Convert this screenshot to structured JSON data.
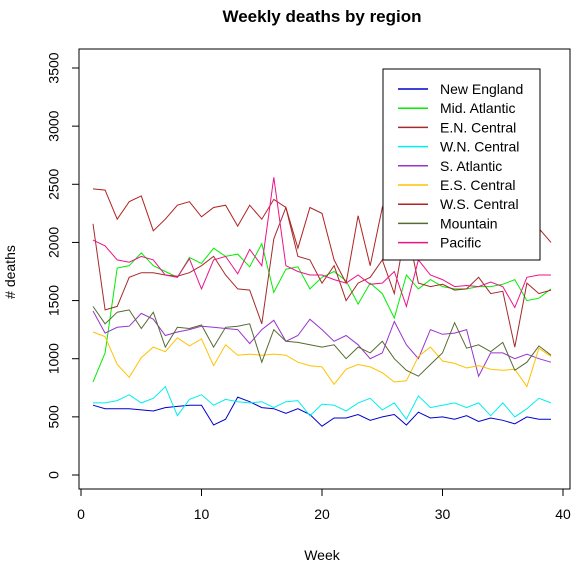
{
  "chart_data": {
    "type": "line",
    "title": "Weekly deaths by region",
    "xlabel": "Week",
    "ylabel": "# deaths",
    "xlim": [
      0,
      40
    ],
    "ylim": [
      0,
      3500
    ],
    "xticks": [
      0,
      10,
      20,
      30,
      40
    ],
    "yticks": [
      0,
      500,
      1000,
      1500,
      2000,
      2500,
      3000,
      3500
    ],
    "grid": false,
    "legend_position": "top-right",
    "x": [
      1,
      2,
      3,
      4,
      5,
      6,
      7,
      8,
      9,
      10,
      11,
      12,
      13,
      14,
      15,
      16,
      17,
      18,
      19,
      20,
      21,
      22,
      23,
      24,
      25,
      26,
      27,
      28,
      29,
      30,
      31,
      32,
      33,
      34,
      35,
      36,
      37,
      38,
      39
    ],
    "series": [
      {
        "name": "New England",
        "color": "#0000cd",
        "values": [
          600,
          570,
          570,
          570,
          560,
          550,
          580,
          590,
          600,
          600,
          430,
          480,
          670,
          630,
          580,
          570,
          530,
          570,
          520,
          420,
          490,
          490,
          520,
          470,
          500,
          520,
          430,
          540,
          490,
          500,
          480,
          510,
          460,
          490,
          470,
          440,
          500,
          480,
          480
        ]
      },
      {
        "name": "Mid. Atlantic",
        "color": "#00ee00",
        "values": [
          800,
          1050,
          1780,
          1800,
          1910,
          1800,
          1750,
          1700,
          1870,
          1820,
          1950,
          1880,
          1900,
          1790,
          1990,
          1570,
          1770,
          1790,
          1600,
          1700,
          1750,
          1670,
          1470,
          1650,
          1560,
          1350,
          1720,
          1600,
          1680,
          1620,
          1600,
          1600,
          1620,
          1620,
          1640,
          1680,
          1500,
          1520,
          1600
        ]
      },
      {
        "name": "E.N. Central",
        "color": "#a52a2a",
        "values": [
          2160,
          1420,
          1450,
          1700,
          1740,
          1740,
          1720,
          1710,
          1740,
          1800,
          1880,
          1720,
          1600,
          1590,
          1300,
          2030,
          2300,
          1880,
          1850,
          1650,
          1800,
          1500,
          1650,
          1700,
          1850,
          1560,
          2150,
          1650,
          1620,
          1640,
          1590,
          1600,
          1700,
          1560,
          1580,
          1100,
          1650,
          1560,
          1590
        ]
      },
      {
        "name": "W.N. Central",
        "color": "#00eeee",
        "values": [
          620,
          620,
          640,
          690,
          620,
          660,
          760,
          510,
          650,
          690,
          600,
          650,
          630,
          620,
          630,
          580,
          630,
          640,
          510,
          610,
          600,
          550,
          620,
          660,
          560,
          620,
          480,
          680,
          580,
          600,
          620,
          580,
          620,
          510,
          620,
          500,
          570,
          660,
          620
        ]
      },
      {
        "name": "S. Atlantic",
        "color": "#9a32cd",
        "values": [
          1410,
          1220,
          1270,
          1280,
          1390,
          1340,
          1200,
          1230,
          1250,
          1280,
          1270,
          1260,
          1250,
          1130,
          1250,
          1330,
          1150,
          1200,
          1340,
          1250,
          1150,
          1200,
          1120,
          1000,
          1050,
          1320,
          1120,
          1000,
          1250,
          1210,
          1220,
          1250,
          850,
          1050,
          1050,
          1000,
          1040,
          1000,
          970
        ]
      },
      {
        "name": "E.S. Central",
        "color": "#ffc200",
        "values": [
          1230,
          1190,
          950,
          840,
          1010,
          1100,
          1060,
          1180,
          1110,
          1170,
          940,
          1120,
          1030,
          1040,
          1030,
          1040,
          1030,
          970,
          940,
          930,
          780,
          910,
          950,
          930,
          880,
          800,
          810,
          1020,
          1100,
          980,
          960,
          920,
          940,
          910,
          900,
          910,
          760,
          1090,
          1020
        ]
      },
      {
        "name": "W.S. Central",
        "color": "#b22222",
        "values": [
          2460,
          2450,
          2200,
          2350,
          2400,
          2100,
          2200,
          2320,
          2350,
          2220,
          2300,
          2320,
          2140,
          2320,
          2200,
          2370,
          2300,
          1950,
          2300,
          2250,
          1850,
          1650,
          2230,
          1800,
          2300,
          2100,
          2200,
          2200,
          2200,
          2000,
          2280,
          2400,
          2200,
          2300,
          2350,
          1900,
          2320,
          2120,
          2000
        ]
      },
      {
        "name": "Mountain",
        "color": "#556b2f",
        "values": [
          1450,
          1300,
          1400,
          1420,
          1260,
          1400,
          1100,
          1270,
          1260,
          1290,
          1100,
          1270,
          1280,
          1300,
          970,
          1250,
          1150,
          1140,
          1120,
          1100,
          1120,
          1000,
          1100,
          1050,
          1150,
          1000,
          900,
          850,
          950,
          1050,
          1310,
          1090,
          1120,
          1060,
          1140,
          900,
          970,
          1110,
          1030
        ]
      },
      {
        "name": "Pacific",
        "color": "#ee1289",
        "values": [
          2020,
          1970,
          1850,
          1830,
          1880,
          1850,
          1720,
          1700,
          1860,
          1600,
          1850,
          1880,
          1730,
          1940,
          1800,
          2560,
          1800,
          1750,
          1720,
          1720,
          1680,
          1650,
          1720,
          1640,
          1650,
          1750,
          1450,
          1850,
          1720,
          1680,
          1620,
          1630,
          1620,
          1660,
          1620,
          1440,
          1700,
          1720,
          1720
        ]
      }
    ]
  }
}
